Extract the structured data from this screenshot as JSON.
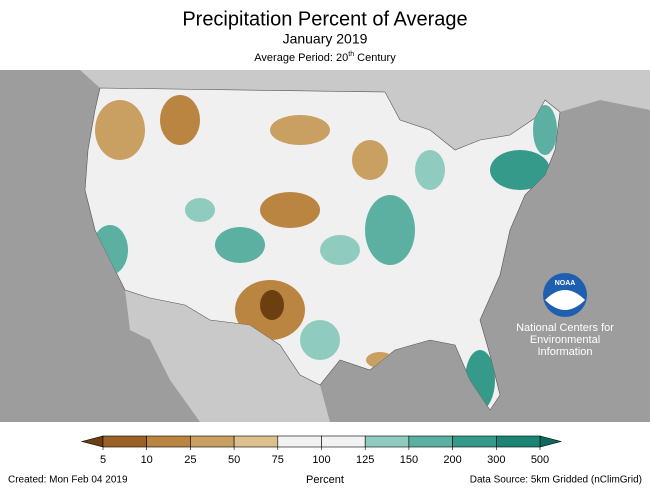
{
  "header": {
    "title": "Precipitation Percent of Average",
    "subtitle": "January 2019",
    "period": [
      "Average Period: 20",
      "th",
      " Century"
    ]
  },
  "legend": {
    "ticks": [
      5,
      10,
      25,
      50,
      75,
      100,
      125,
      150,
      200,
      300,
      500
    ],
    "colors": [
      "#6b3f10",
      "#9a6126",
      "#b98540",
      "#c9a062",
      "#dcc08e",
      "#f2f2f2",
      "#f2f2f2",
      "#8fcbbf",
      "#5bb0a2",
      "#369a8a",
      "#1a8574",
      "#0a6b5c"
    ],
    "label": "Percent"
  },
  "logo": {
    "name": "NOAA",
    "lines": [
      "National Centers for",
      "Environmental",
      "Information"
    ]
  },
  "footer": {
    "created": "Created: Mon Feb 04 2019",
    "source": "Data Source: 5km Gridded (nClimGrid)"
  }
}
